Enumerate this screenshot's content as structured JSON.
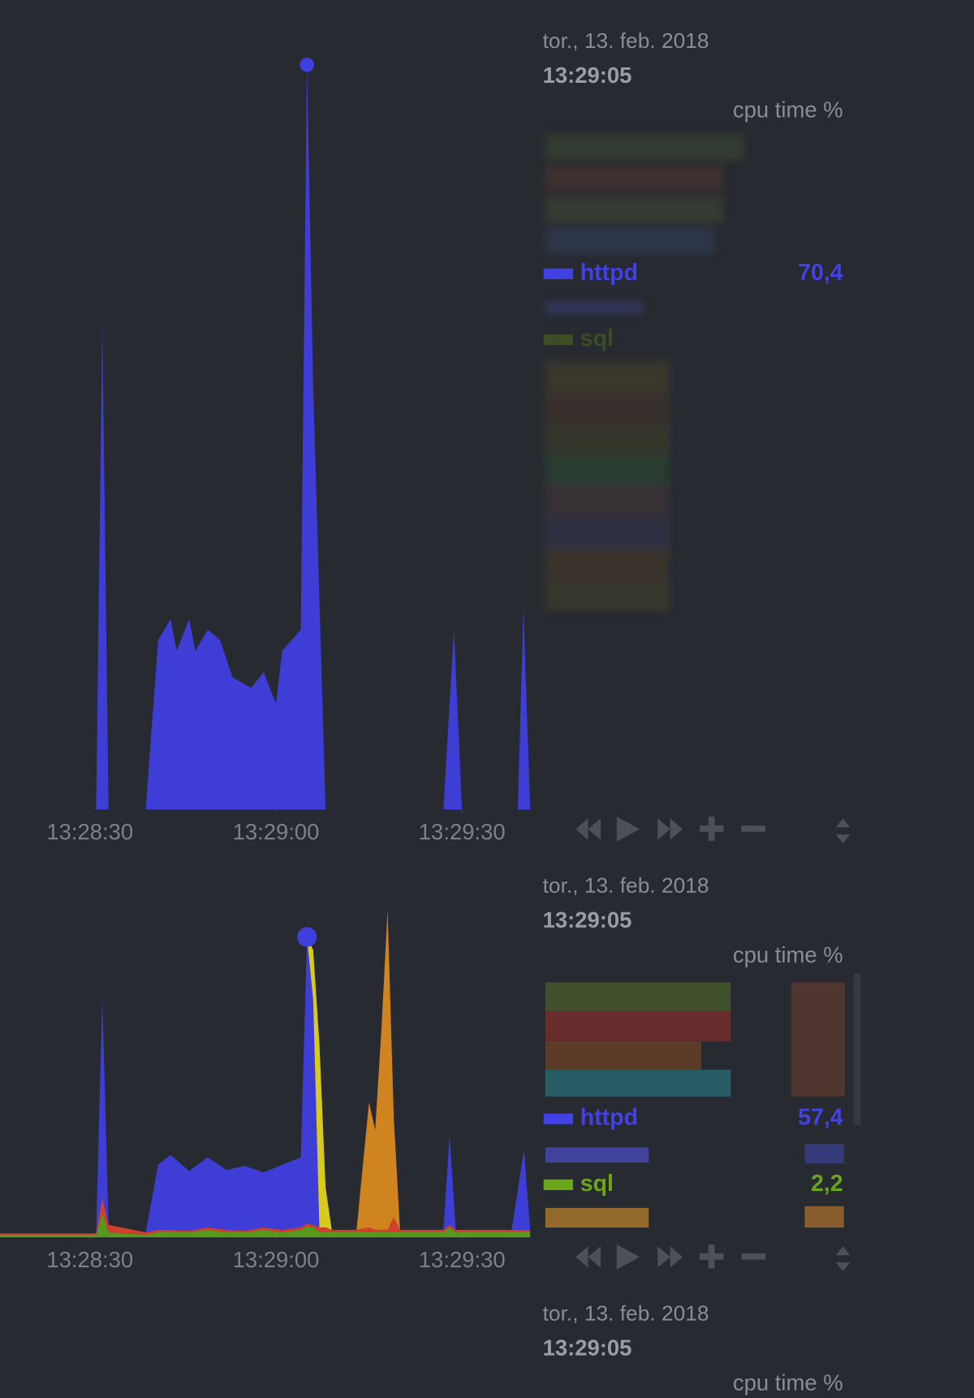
{
  "panels": [
    {
      "date": "tor., 13. feb. 2018",
      "time": "13:29:05",
      "units": "cpu time %",
      "legend": [
        {
          "name": "httpd",
          "color": "#4141e6",
          "value": "70,4"
        },
        {
          "name": "sql",
          "color": "#4d6a1c"
        }
      ],
      "chart_data": {
        "type": "area",
        "stacked": false,
        "x": [
          15.5,
          31,
          32,
          33,
          39,
          41,
          43,
          44,
          46,
          47,
          49,
          51,
          53,
          56,
          58,
          60,
          61,
          64,
          65,
          66,
          68,
          87,
          88.7,
          90,
          99,
          99.9,
          101
        ],
        "series": [
          {
            "color": "#3f3fe0",
            "values": [
              0,
              0,
              46,
              0,
              0,
              16,
              18,
              15,
              18,
              15,
              17,
              16,
              12.5,
              11.5,
              13,
              10,
              15,
              17,
              70.4,
              40,
              0,
              0,
              17,
              0,
              0,
              19,
              0
            ]
          }
        ],
        "xlim": [
          15.5,
          101
        ],
        "ylim": [
          0,
          75
        ],
        "xticks": [
          {
            "value": 30,
            "label": "13:28:30"
          },
          {
            "value": 60,
            "label": "13:29:00"
          },
          {
            "value": 90,
            "label": "13:29:30"
          }
        ]
      }
    },
    {
      "date": "tor., 13. feb. 2018",
      "time": "13:29:05",
      "units": "cpu time %",
      "legend": [
        {
          "name": "httpd",
          "color": "#4141e6",
          "value": "57,4"
        },
        {
          "name": "sql",
          "color": "#6aa51a",
          "value": "2,2"
        }
      ],
      "chart_data": {
        "type": "area",
        "stacked": true,
        "x": [
          15.5,
          31,
          32,
          33,
          39,
          41,
          43,
          46,
          49,
          52,
          55,
          58,
          61,
          64,
          65,
          66,
          67,
          68,
          69,
          73,
          75,
          76,
          77,
          78,
          79,
          80,
          87,
          88,
          89,
          98,
          100,
          101
        ],
        "series": [
          {
            "color": "#5a9e1e",
            "values": [
              0.5,
              0.5,
              5,
              1,
              0.5,
              1,
              1,
              1,
              1.5,
              1,
              1,
              1.5,
              1,
              1.5,
              2.2,
              2,
              1,
              1,
              1,
              1,
              1,
              1,
              1,
              1,
              1,
              1,
              1,
              2,
              1,
              1,
              1,
              1
            ]
          },
          {
            "color": "#d8412f",
            "values": [
              0.3,
              0.3,
              3,
              1.5,
              0.5,
              0.5,
              0.5,
              0.3,
              0.5,
              0.5,
              0.3,
              0.5,
              0.5,
              0.5,
              0.5,
              0.5,
              1,
              1,
              0.5,
              0.5,
              1,
              0.5,
              0.5,
              0.5,
              3,
              0.5,
              0.5,
              0.5,
              0.5,
              0.5,
              0.5,
              0.3
            ]
          },
          {
            "color": "#3f3fe0",
            "values": [
              0,
              0,
              40,
              0,
              0,
              13,
              15,
              12,
              14,
              12,
              13,
              11,
              13,
              14,
              57.4,
              45,
              0,
              0,
              0,
              0,
              0,
              0,
              0,
              0,
              0,
              0,
              0,
              18,
              0,
              0,
              16,
              0
            ]
          },
          {
            "color": "#e0d21e",
            "values": [
              0,
              0,
              0,
              0,
              0,
              0,
              0,
              0,
              0,
              0,
              0,
              0,
              0,
              0,
              0,
              10,
              37,
              8,
              0,
              0,
              0,
              0,
              0,
              0,
              0,
              0,
              0,
              0,
              0,
              0,
              0,
              0
            ]
          },
          {
            "color": "#d9891f",
            "values": [
              0,
              0,
              0,
              0,
              0,
              0,
              0,
              0,
              0,
              0,
              0,
              0,
              0,
              0,
              0,
              0,
              0,
              0,
              0,
              0,
              25,
              20,
              40,
              64,
              20,
              0,
              0,
              0,
              0,
              0,
              0,
              0
            ]
          }
        ],
        "xlim": [
          15.5,
          101
        ],
        "ylim": [
          0,
          67.4
        ],
        "xticks": [
          {
            "value": 30,
            "label": "13:28:30"
          },
          {
            "value": 60,
            "label": "13:29:00"
          },
          {
            "value": 90,
            "label": "13:29:30"
          }
        ]
      }
    },
    {
      "date": "tor., 13. feb. 2018",
      "time": "13:29:05",
      "units": "cpu time %"
    }
  ]
}
